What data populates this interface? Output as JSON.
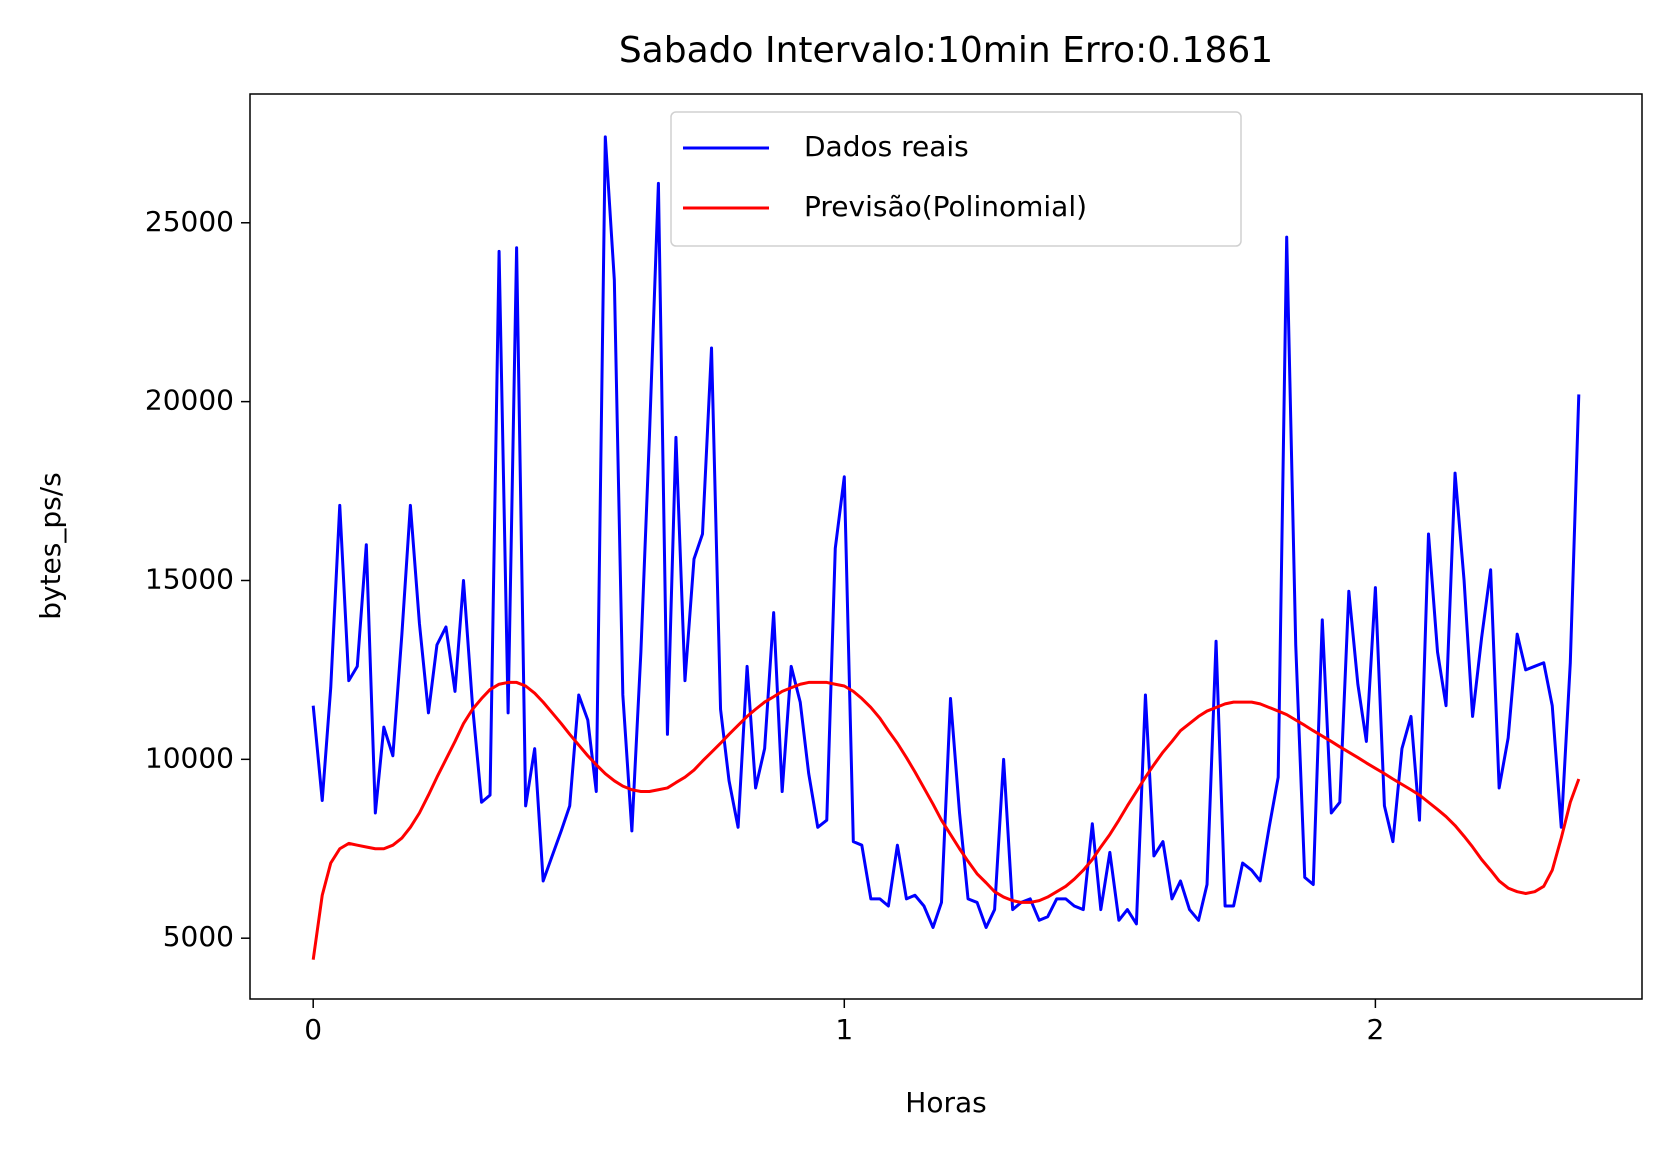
{
  "chart_data": {
    "type": "line",
    "title": "Sabado Intervalo:10min Erro:0.1861",
    "x_label": "Horas",
    "y_label": "bytes_ps/s",
    "x": [
      0,
      0.017,
      0.033,
      0.05,
      0.067,
      0.083,
      0.1,
      0.117,
      0.133,
      0.15,
      0.167,
      0.183,
      0.2,
      0.217,
      0.233,
      0.25,
      0.267,
      0.283,
      0.3,
      0.317,
      0.333,
      0.35,
      0.367,
      0.383,
      0.4,
      0.417,
      0.433,
      0.45,
      0.467,
      0.483,
      0.5,
      0.517,
      0.533,
      0.55,
      0.567,
      0.583,
      0.6,
      0.617,
      0.633,
      0.65,
      0.667,
      0.683,
      0.7,
      0.717,
      0.733,
      0.75,
      0.767,
      0.783,
      0.8,
      0.817,
      0.833,
      0.85,
      0.867,
      0.883,
      0.9,
      0.917,
      0.933,
      0.95,
      0.967,
      0.983,
      1,
      1.017,
      1.033,
      1.05,
      1.067,
      1.083,
      1.1,
      1.117,
      1.133,
      1.15,
      1.167,
      1.183,
      1.2,
      1.217,
      1.233,
      1.25,
      1.267,
      1.283,
      1.3,
      1.317,
      1.333,
      1.35,
      1.367,
      1.383,
      1.4,
      1.417,
      1.433,
      1.45,
      1.467,
      1.483,
      1.5,
      1.517,
      1.533,
      1.55,
      1.567,
      1.583,
      1.6,
      1.617,
      1.633,
      1.65,
      1.667,
      1.683,
      1.7,
      1.717,
      1.733,
      1.75,
      1.767,
      1.783,
      1.8,
      1.817,
      1.833,
      1.85,
      1.867,
      1.883,
      1.9,
      1.917,
      1.933,
      1.95,
      1.967,
      1.983,
      2,
      2.017,
      2.033,
      2.05,
      2.067,
      2.083,
      2.1,
      2.117,
      2.133,
      2.15,
      2.167,
      2.183,
      2.2,
      2.217,
      2.233,
      2.25,
      2.267,
      2.283,
      2.3,
      2.317,
      2.333,
      2.35,
      2.367,
      2.383
    ],
    "series": [
      {
        "name": "Dados reais",
        "color": "#0000ff",
        "values": [
          11500,
          8850,
          12000,
          17100,
          12200,
          12600,
          16000,
          8500,
          10900,
          10100,
          13500,
          17100,
          13800,
          11300,
          13200,
          13700,
          11900,
          15000,
          11500,
          8800,
          9000,
          24200,
          11300,
          24300,
          8700,
          10300,
          6600,
          7300,
          8000,
          8700,
          11800,
          11100,
          9100,
          27400,
          23400,
          11800,
          8000,
          13000,
          19000,
          26100,
          10700,
          19000,
          12200,
          15600,
          16300,
          21500,
          11400,
          9400,
          8100,
          12600,
          9200,
          10300,
          14100,
          9100,
          12600,
          11600,
          9600,
          8100,
          8300,
          15900,
          17900,
          7700,
          7600,
          6100,
          6100,
          5900,
          7600,
          6100,
          6200,
          5900,
          5300,
          6000,
          11700,
          8500,
          6100,
          6000,
          5300,
          5800,
          10000,
          5800,
          6000,
          6100,
          5500,
          5600,
          6100,
          6100,
          5900,
          5800,
          8200,
          5800,
          7400,
          5500,
          5800,
          5400,
          11800,
          7300,
          7700,
          6100,
          6600,
          5800,
          5500,
          6500,
          13300,
          5900,
          5900,
          7100,
          6900,
          6600,
          8100,
          9500,
          24600,
          13200,
          6700,
          6500,
          13900,
          8500,
          8800,
          14700,
          12100,
          10500,
          14800,
          8700,
          7700,
          10300,
          11200,
          8300,
          16300,
          13000,
          11500,
          18000,
          15000,
          11200,
          13400,
          15300,
          9200,
          10600,
          13500,
          12500,
          12600,
          12700,
          11500,
          8100,
          12700,
          20200
        ]
      },
      {
        "name": "Previsão(Polinomial)",
        "color": "#ff0000",
        "values": [
          4400,
          6200,
          7100,
          7500,
          7650,
          7600,
          7550,
          7500,
          7500,
          7600,
          7800,
          8100,
          8500,
          9000,
          9500,
          10000,
          10500,
          11000,
          11400,
          11700,
          11950,
          12100,
          12150,
          12150,
          12050,
          11850,
          11600,
          11300,
          11000,
          10700,
          10400,
          10100,
          9850,
          9600,
          9400,
          9250,
          9150,
          9100,
          9100,
          9150,
          9200,
          9350,
          9500,
          9700,
          9950,
          10200,
          10450,
          10700,
          10950,
          11200,
          11400,
          11600,
          11750,
          11900,
          12000,
          12100,
          12150,
          12150,
          12150,
          12100,
          12050,
          11900,
          11700,
          11450,
          11150,
          10800,
          10450,
          10050,
          9650,
          9200,
          8750,
          8300,
          7900,
          7500,
          7150,
          6800,
          6550,
          6300,
          6150,
          6050,
          6000,
          6000,
          6050,
          6150,
          6300,
          6450,
          6650,
          6900,
          7200,
          7550,
          7900,
          8300,
          8700,
          9100,
          9500,
          9850,
          10200,
          10500,
          10800,
          11000,
          11200,
          11350,
          11450,
          11550,
          11600,
          11600,
          11600,
          11550,
          11450,
          11350,
          11250,
          11100,
          10950,
          10800,
          10650,
          10500,
          10350,
          10200,
          10050,
          9900,
          9750,
          9600,
          9450,
          9300,
          9150,
          9000,
          8800,
          8600,
          8400,
          8150,
          7850,
          7550,
          7200,
          6900,
          6600,
          6400,
          6300,
          6250,
          6300,
          6450,
          6900,
          7800,
          8800,
          9450
        ]
      }
    ],
    "xlim": [
      -0.119,
      2.502
    ],
    "xticks": [
      0,
      1,
      2
    ],
    "ylim": [
      3300,
      28600
    ],
    "yticks": [
      5000,
      10000,
      15000,
      20000,
      25000
    ],
    "grid": false,
    "legend": "upper center"
  }
}
